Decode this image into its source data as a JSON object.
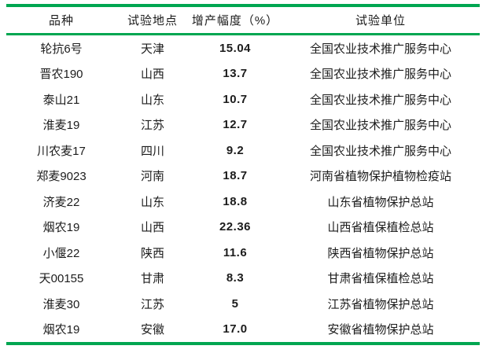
{
  "colors": {
    "rule_green": "#00a651",
    "text": "#1c1c1c",
    "background": "#ffffff"
  },
  "table": {
    "column_keys": [
      "variety",
      "location",
      "yield-increase",
      "unit"
    ],
    "headers": [
      "品种",
      "试验地点",
      "增产幅度（%）",
      "试验单位"
    ],
    "rows": [
      [
        "轮抗6号",
        "天津",
        "15.04",
        "全国农业技术推广服务中心"
      ],
      [
        "晋农190",
        "山西",
        "13.7",
        "全国农业技术推广服务中心"
      ],
      [
        "泰山21",
        "山东",
        "10.7",
        "全国农业技术推广服务中心"
      ],
      [
        "淮麦19",
        "江苏",
        "12.7",
        "全国农业技术推广服务中心"
      ],
      [
        "川农麦17",
        "四川",
        "9.2",
        "全国农业技术推广服务中心"
      ],
      [
        "郑麦9023",
        "河南",
        "18.7",
        "河南省植物保护植物检疫站"
      ],
      [
        "济麦22",
        "山东",
        "18.8",
        "山东省植物保护总站"
      ],
      [
        "烟农19",
        "山西",
        "22.36",
        "山西省植保植检总站"
      ],
      [
        "小偃22",
        "陕西",
        "11.6",
        "陕西省植物保护总站"
      ],
      [
        "天00155",
        "甘肃",
        "8.3",
        "甘肃省植保植检总站"
      ],
      [
        "淮麦30",
        "江苏",
        "5",
        "江苏省植物保护总站"
      ],
      [
        "烟农19",
        "安徽",
        "17.0",
        "安徽省植物保护总站"
      ]
    ]
  },
  "chart_data": {
    "type": "table",
    "title": "",
    "columns": [
      "品种",
      "试验地点",
      "增产幅度（%）",
      "试验单位"
    ],
    "yield_increase_percent": [
      15.04,
      13.7,
      10.7,
      12.7,
      9.2,
      18.7,
      18.8,
      22.36,
      11.6,
      8.3,
      5,
      17.0
    ]
  }
}
